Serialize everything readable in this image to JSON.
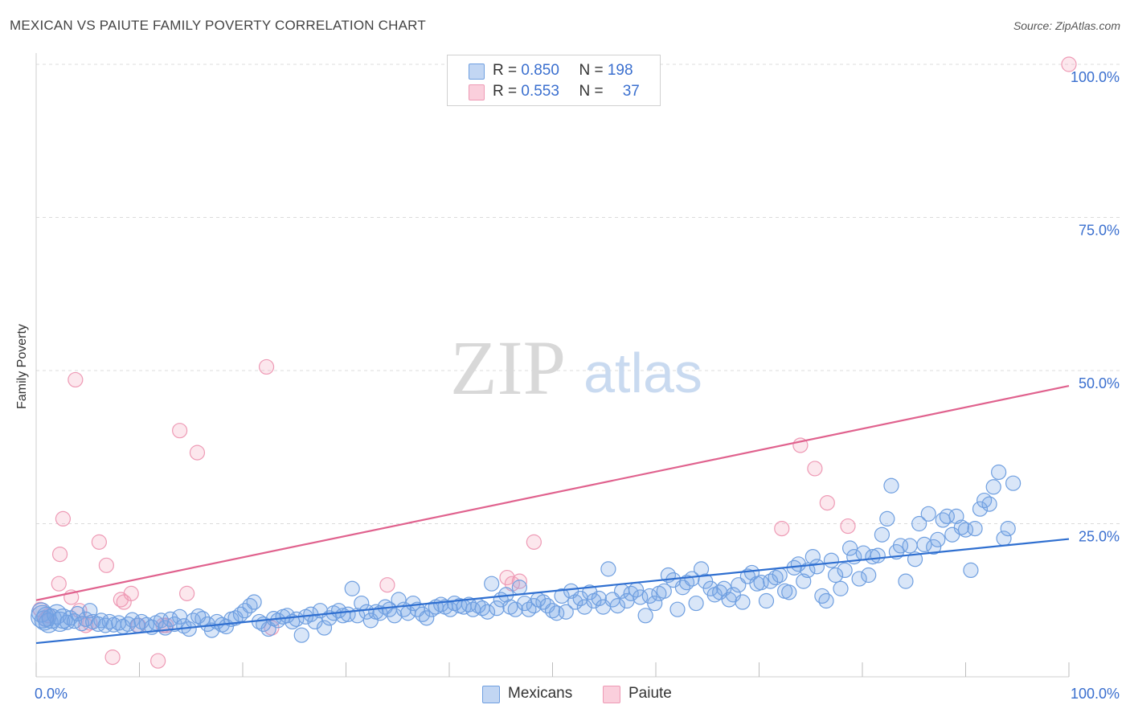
{
  "title": "MEXICAN VS PAIUTE FAMILY POVERTY CORRELATION CHART",
  "source": "Source: ZipAtlas.com",
  "watermark": {
    "zip": "ZIP",
    "atlas": "atlas"
  },
  "legend": {
    "rows": [
      {
        "r_label": "R = ",
        "r_value": "0.850",
        "n_label": "N = ",
        "n_value": "198",
        "color": "#8fb5ea"
      },
      {
        "r_label": "R = ",
        "r_value": "0.553",
        "n_label": "N = ",
        "n_value": "37",
        "color": "#f5a7bf"
      }
    ]
  },
  "colors": {
    "blue_fill": "rgba(120,165,230,0.28)",
    "blue_stroke": "#6f9fe0",
    "blue_line": "#2f6fd0",
    "pink_fill": "rgba(245,160,185,0.25)",
    "pink_stroke": "#ee9ab5",
    "pink_line": "#e0628e",
    "tick_label": "#3a6fcf",
    "grid": "#dcdcdc"
  },
  "chart_data": {
    "type": "scatter",
    "title": "MEXICAN VS PAIUTE FAMILY POVERTY CORRELATION CHART",
    "xlabel": "",
    "ylabel": "Family Poverty",
    "xlim": [
      0,
      100
    ],
    "ylim": [
      0,
      100
    ],
    "x_tick_labels": [
      "0.0%",
      "100.0%"
    ],
    "y_tick_labels": [
      "25.0%",
      "50.0%",
      "75.0%",
      "100.0%"
    ],
    "y_ticks": [
      25,
      50,
      75,
      100
    ],
    "grid": true,
    "legend_position": "top-center",
    "series": [
      {
        "name": "Mexicans",
        "r": 0.85,
        "n": 198,
        "trend": {
          "x": [
            0,
            100
          ],
          "y": [
            5.5,
            22.5
          ]
        },
        "points": [
          [
            0.5,
            10.5
          ],
          [
            0.8,
            9.2
          ],
          [
            1.0,
            9.8
          ],
          [
            1.2,
            8.8
          ],
          [
            1.5,
            9.5
          ],
          [
            2.0,
            10.2
          ],
          [
            2.3,
            9.0
          ],
          [
            2.6,
            9.5
          ],
          [
            3.0,
            8.9
          ],
          [
            3.3,
            9.6
          ],
          [
            3.7,
            9.1
          ],
          [
            4.0,
            10.3
          ],
          [
            4.4,
            8.7
          ],
          [
            4.8,
            9.4
          ],
          [
            5.2,
            10.8
          ],
          [
            5.5,
            9.0
          ],
          [
            6.0,
            8.6
          ],
          [
            6.3,
            9.2
          ],
          [
            6.7,
            8.4
          ],
          [
            7.1,
            9.0
          ],
          [
            7.5,
            8.5
          ],
          [
            8.0,
            8.8
          ],
          [
            8.4,
            8.2
          ],
          [
            8.9,
            8.6
          ],
          [
            9.3,
            9.3
          ],
          [
            9.8,
            8.4
          ],
          [
            10.2,
            9.0
          ],
          [
            10.7,
            8.5
          ],
          [
            11.2,
            8.1
          ],
          [
            11.6,
            8.8
          ],
          [
            12.1,
            9.2
          ],
          [
            12.5,
            8.0
          ],
          [
            13.0,
            9.4
          ],
          [
            13.4,
            8.6
          ],
          [
            13.9,
            9.8
          ],
          [
            14.3,
            8.3
          ],
          [
            14.8,
            7.8
          ],
          [
            15.2,
            9.2
          ],
          [
            15.7,
            9.9
          ],
          [
            16.1,
            9.5
          ],
          [
            16.6,
            8.6
          ],
          [
            17.0,
            7.6
          ],
          [
            17.5,
            9.0
          ],
          [
            18.0,
            8.5
          ],
          [
            18.4,
            8.2
          ],
          [
            18.9,
            9.4
          ],
          [
            19.3,
            9.6
          ],
          [
            19.8,
            10.2
          ],
          [
            20.2,
            10.8
          ],
          [
            20.7,
            11.6
          ],
          [
            21.1,
            12.2
          ],
          [
            21.6,
            9.0
          ],
          [
            22.0,
            8.6
          ],
          [
            22.5,
            7.8
          ],
          [
            23.0,
            9.5
          ],
          [
            23.4,
            9.2
          ],
          [
            23.9,
            9.8
          ],
          [
            24.3,
            10.0
          ],
          [
            24.8,
            9.0
          ],
          [
            25.2,
            9.4
          ],
          [
            25.7,
            6.8
          ],
          [
            26.1,
            9.8
          ],
          [
            26.6,
            10.2
          ],
          [
            27.0,
            9.0
          ],
          [
            27.5,
            10.8
          ],
          [
            27.9,
            8.0
          ],
          [
            28.4,
            9.6
          ],
          [
            28.8,
            10.4
          ],
          [
            29.3,
            10.8
          ],
          [
            29.7,
            10.0
          ],
          [
            30.2,
            10.2
          ],
          [
            30.6,
            14.4
          ],
          [
            31.1,
            10.0
          ],
          [
            31.5,
            12.0
          ],
          [
            32.0,
            10.6
          ],
          [
            32.4,
            9.2
          ],
          [
            32.9,
            10.6
          ],
          [
            33.3,
            10.4
          ],
          [
            33.8,
            11.4
          ],
          [
            34.2,
            11.0
          ],
          [
            34.7,
            10.0
          ],
          [
            35.1,
            12.6
          ],
          [
            35.6,
            11.0
          ],
          [
            36.0,
            10.4
          ],
          [
            36.5,
            12.0
          ],
          [
            36.9,
            11.0
          ],
          [
            37.4,
            10.2
          ],
          [
            37.8,
            9.6
          ],
          [
            38.3,
            11.0
          ],
          [
            38.7,
            11.4
          ],
          [
            39.2,
            11.8
          ],
          [
            39.6,
            11.4
          ],
          [
            40.1,
            11.0
          ],
          [
            40.5,
            12.0
          ],
          [
            41.0,
            11.6
          ],
          [
            41.4,
            11.4
          ],
          [
            41.9,
            11.8
          ],
          [
            42.3,
            11.0
          ],
          [
            42.8,
            11.6
          ],
          [
            43.2,
            11.2
          ],
          [
            43.7,
            10.6
          ],
          [
            44.1,
            15.2
          ],
          [
            44.6,
            11.2
          ],
          [
            45.0,
            12.6
          ],
          [
            45.5,
            13.4
          ],
          [
            45.9,
            11.4
          ],
          [
            46.4,
            11.0
          ],
          [
            46.8,
            14.6
          ],
          [
            47.3,
            12.0
          ],
          [
            47.7,
            11.0
          ],
          [
            48.2,
            11.6
          ],
          [
            48.6,
            12.6
          ],
          [
            49.1,
            12.2
          ],
          [
            49.5,
            11.6
          ],
          [
            50.0,
            10.8
          ],
          [
            50.4,
            10.4
          ],
          [
            50.9,
            13.2
          ],
          [
            51.3,
            10.6
          ],
          [
            51.8,
            14.0
          ],
          [
            52.2,
            12.2
          ],
          [
            52.7,
            12.8
          ],
          [
            53.1,
            11.4
          ],
          [
            53.6,
            13.8
          ],
          [
            54.0,
            12.4
          ],
          [
            54.5,
            12.8
          ],
          [
            54.9,
            11.4
          ],
          [
            55.4,
            17.6
          ],
          [
            55.8,
            12.6
          ],
          [
            56.3,
            11.6
          ],
          [
            56.7,
            14.0
          ],
          [
            57.2,
            12.4
          ],
          [
            57.6,
            13.6
          ],
          [
            58.1,
            14.2
          ],
          [
            58.5,
            13.0
          ],
          [
            59.0,
            10.0
          ],
          [
            59.4,
            13.2
          ],
          [
            59.9,
            12.0
          ],
          [
            60.3,
            13.6
          ],
          [
            60.8,
            14.0
          ],
          [
            61.2,
            16.6
          ],
          [
            61.7,
            15.8
          ],
          [
            62.1,
            11.0
          ],
          [
            62.6,
            14.6
          ],
          [
            63.0,
            15.4
          ],
          [
            63.5,
            16.0
          ],
          [
            63.9,
            12.0
          ],
          [
            64.4,
            17.6
          ],
          [
            64.8,
            15.6
          ],
          [
            65.3,
            14.4
          ],
          [
            65.7,
            13.4
          ],
          [
            66.2,
            13.8
          ],
          [
            66.6,
            14.4
          ],
          [
            67.1,
            12.6
          ],
          [
            67.5,
            13.4
          ],
          [
            68.0,
            15.0
          ],
          [
            68.4,
            12.2
          ],
          [
            68.9,
            16.4
          ],
          [
            69.3,
            17.0
          ],
          [
            69.8,
            15.2
          ],
          [
            70.2,
            15.4
          ],
          [
            70.7,
            12.4
          ],
          [
            71.1,
            15.6
          ],
          [
            71.6,
            16.2
          ],
          [
            72.0,
            16.6
          ],
          [
            72.5,
            14.0
          ],
          [
            72.9,
            13.8
          ],
          [
            73.4,
            17.8
          ],
          [
            73.8,
            18.4
          ],
          [
            74.3,
            15.6
          ],
          [
            74.7,
            17.4
          ],
          [
            75.2,
            19.6
          ],
          [
            75.6,
            18.0
          ],
          [
            76.1,
            13.2
          ],
          [
            76.5,
            12.4
          ],
          [
            77.0,
            19.0
          ],
          [
            77.4,
            16.6
          ],
          [
            77.9,
            14.4
          ],
          [
            78.3,
            17.4
          ],
          [
            78.8,
            21.0
          ],
          [
            79.2,
            19.6
          ],
          [
            79.7,
            16.0
          ],
          [
            80.1,
            20.2
          ],
          [
            80.6,
            16.6
          ],
          [
            81.0,
            19.6
          ],
          [
            81.5,
            19.8
          ],
          [
            81.9,
            23.2
          ],
          [
            82.4,
            25.8
          ],
          [
            82.8,
            31.2
          ],
          [
            83.3,
            20.4
          ],
          [
            83.7,
            21.4
          ],
          [
            84.2,
            15.6
          ],
          [
            84.6,
            21.4
          ],
          [
            85.1,
            19.2
          ],
          [
            85.5,
            25.0
          ],
          [
            86.0,
            21.6
          ],
          [
            86.4,
            26.6
          ],
          [
            86.9,
            21.2
          ],
          [
            87.3,
            22.4
          ],
          [
            87.8,
            25.6
          ],
          [
            88.2,
            26.2
          ],
          [
            88.7,
            23.2
          ],
          [
            89.1,
            26.2
          ],
          [
            89.6,
            24.4
          ],
          [
            90.0,
            24.0
          ],
          [
            90.5,
            17.4
          ],
          [
            90.9,
            24.2
          ],
          [
            91.4,
            27.4
          ],
          [
            91.8,
            28.8
          ],
          [
            92.3,
            28.2
          ],
          [
            92.7,
            31.0
          ],
          [
            93.2,
            33.4
          ],
          [
            93.7,
            22.6
          ],
          [
            94.1,
            24.2
          ],
          [
            94.6,
            31.6
          ]
        ]
      },
      {
        "name": "Paiute",
        "r": 0.553,
        "n": 37,
        "trend": {
          "x": [
            0,
            100
          ],
          "y": [
            12.5,
            47.5
          ]
        },
        "points": [
          [
            0.4,
            11.0
          ],
          [
            0.9,
            9.4
          ],
          [
            1.2,
            10.0
          ],
          [
            2.2,
            15.2
          ],
          [
            2.3,
            20.0
          ],
          [
            2.6,
            25.8
          ],
          [
            3.4,
            13.0
          ],
          [
            3.8,
            48.5
          ],
          [
            4.2,
            10.8
          ],
          [
            4.8,
            8.4
          ],
          [
            5.2,
            8.8
          ],
          [
            6.1,
            22.0
          ],
          [
            6.8,
            18.2
          ],
          [
            7.4,
            3.2
          ],
          [
            8.2,
            12.6
          ],
          [
            8.5,
            12.2
          ],
          [
            9.2,
            13.6
          ],
          [
            9.9,
            8.4
          ],
          [
            11.8,
            2.6
          ],
          [
            12.3,
            8.4
          ],
          [
            12.6,
            8.4
          ],
          [
            13.9,
            40.2
          ],
          [
            14.6,
            13.6
          ],
          [
            15.6,
            36.6
          ],
          [
            22.3,
            50.6
          ],
          [
            22.8,
            8.0
          ],
          [
            34.0,
            15.0
          ],
          [
            45.6,
            16.2
          ],
          [
            46.1,
            15.2
          ],
          [
            46.8,
            15.6
          ],
          [
            48.2,
            22.0
          ],
          [
            72.2,
            24.2
          ],
          [
            74.0,
            37.8
          ],
          [
            75.4,
            34.0
          ],
          [
            76.6,
            28.4
          ],
          [
            78.6,
            24.6
          ],
          [
            100,
            100
          ]
        ]
      }
    ]
  },
  "bottom_legend": [
    {
      "label": "Mexicans"
    },
    {
      "label": "Paiute"
    }
  ]
}
